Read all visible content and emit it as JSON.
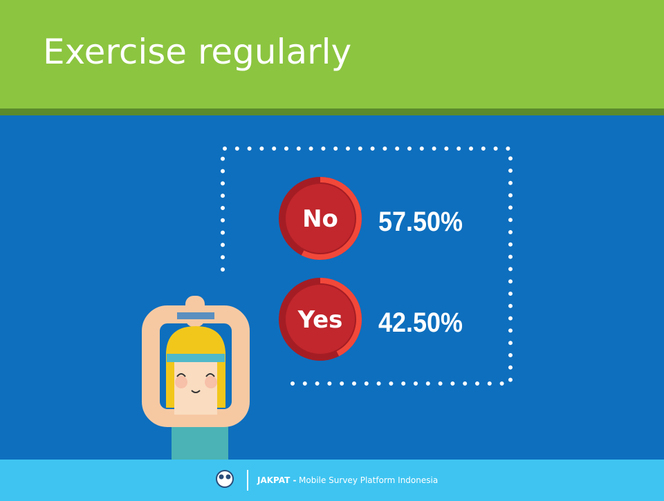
{
  "header": {
    "title": "Exercise regularly"
  },
  "results": [
    {
      "label": "No",
      "value": 57.5,
      "value_label": "57.50%"
    },
    {
      "label": "Yes",
      "value": 42.5,
      "value_label": "42.50%"
    }
  ],
  "footer": {
    "brand": "JAKPAT -",
    "tagline": "Mobile Survey Platform Indonesia"
  }
}
